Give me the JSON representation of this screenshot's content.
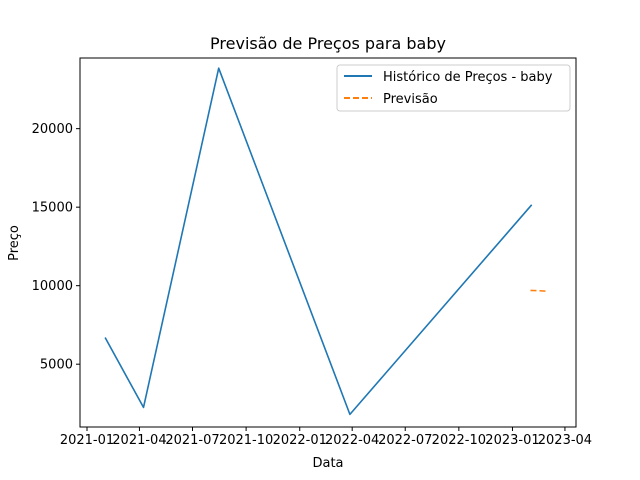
{
  "chart_data": {
    "type": "line",
    "title": "Previsão de Preços para baby",
    "xlabel": "Data",
    "ylabel": "Preço",
    "x_ticks": [
      "2021-01",
      "2021-04",
      "2021-07",
      "2021-10",
      "2022-01",
      "2022-04",
      "2022-07",
      "2022-10",
      "2023-01",
      "2023-04"
    ],
    "y_ticks": [
      5000,
      10000,
      15000,
      20000
    ],
    "xlim": [
      "2020-12-20",
      "2023-04-20"
    ],
    "ylim": [
      1000,
      24500
    ],
    "grid": false,
    "legend_position": "top-right",
    "series": [
      {
        "name": "Histórico de Preços - baby",
        "style": "solid",
        "color": "#1f77b4",
        "points": [
          {
            "x": "2021-02-01",
            "y": 6700
          },
          {
            "x": "2021-04-08",
            "y": 2250
          },
          {
            "x": "2021-08-15",
            "y": 23850
          },
          {
            "x": "2022-03-28",
            "y": 1800
          },
          {
            "x": "2023-02-03",
            "y": 15150
          }
        ]
      },
      {
        "name": "Previsão",
        "style": "dashed",
        "color": "#ff7f0e",
        "points": [
          {
            "x": "2023-02-01",
            "y": 9700
          },
          {
            "x": "2023-02-15",
            "y": 9680
          },
          {
            "x": "2023-03-01",
            "y": 9650
          }
        ]
      }
    ]
  }
}
